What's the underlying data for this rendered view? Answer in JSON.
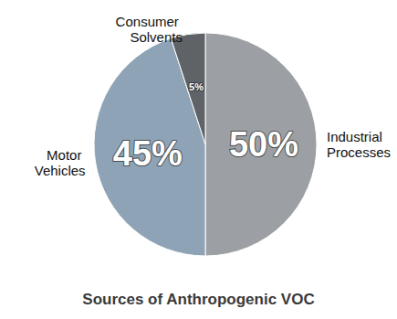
{
  "chart_data": {
    "type": "pie",
    "title": "Sources of Anthropogenic VOC",
    "categories": [
      "Industrial Processes",
      "Motor Vehicles",
      "Consumer Solvents"
    ],
    "values": [
      50,
      45,
      5
    ],
    "value_labels": [
      "50%",
      "45%",
      "5%"
    ],
    "colors": [
      "#9c9fa3",
      "#8ea3b6",
      "#5f6266"
    ],
    "data_labels": true
  }
}
